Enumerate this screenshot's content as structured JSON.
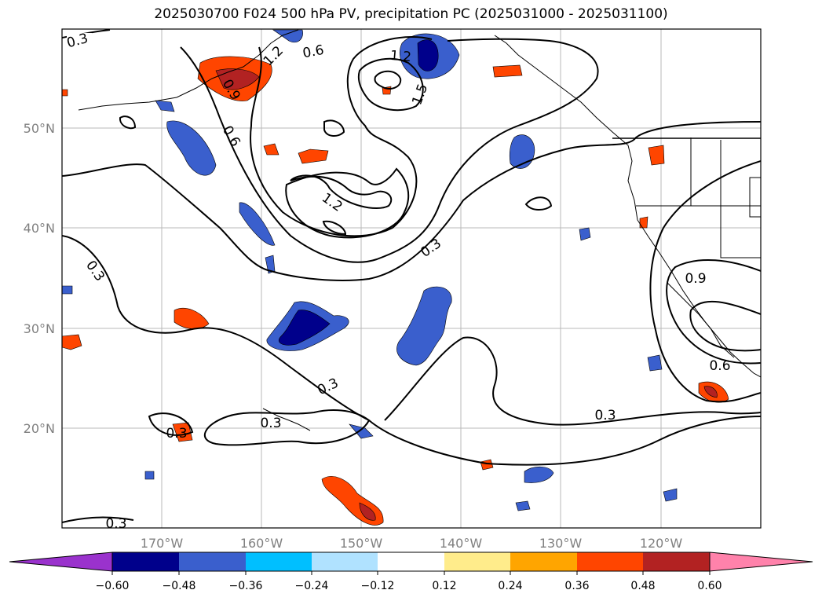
{
  "title": "2025030700 F024 500 hPa PV, precipitation PC (2025031000 - 2025031100)",
  "lon_labels": [
    "170°W",
    "160°W",
    "150°W",
    "140°W",
    "130°W",
    "120°W"
  ],
  "lat_labels": [
    "50°N",
    "40°N",
    "30°N",
    "20°N"
  ],
  "contour_labels": [
    "0.3",
    "0.6",
    "0.9",
    "1.2",
    "1.5"
  ],
  "colorbar": {
    "ticks": [
      "−0.60",
      "−0.48",
      "−0.36",
      "−0.24",
      "−0.12",
      "0.12",
      "0.24",
      "0.36",
      "0.48",
      "0.60"
    ],
    "colors": [
      "#9a32cd",
      "#00008b",
      "#3a5fcd",
      "#00bfff",
      "#b0e2ff",
      "#ffffff",
      "#ffec8b",
      "#ffa500",
      "#ff4500",
      "#b22222",
      "#ff82ab"
    ]
  },
  "map_extent": {
    "lon": [
      -180,
      -110
    ],
    "lat": [
      10,
      60
    ]
  }
}
